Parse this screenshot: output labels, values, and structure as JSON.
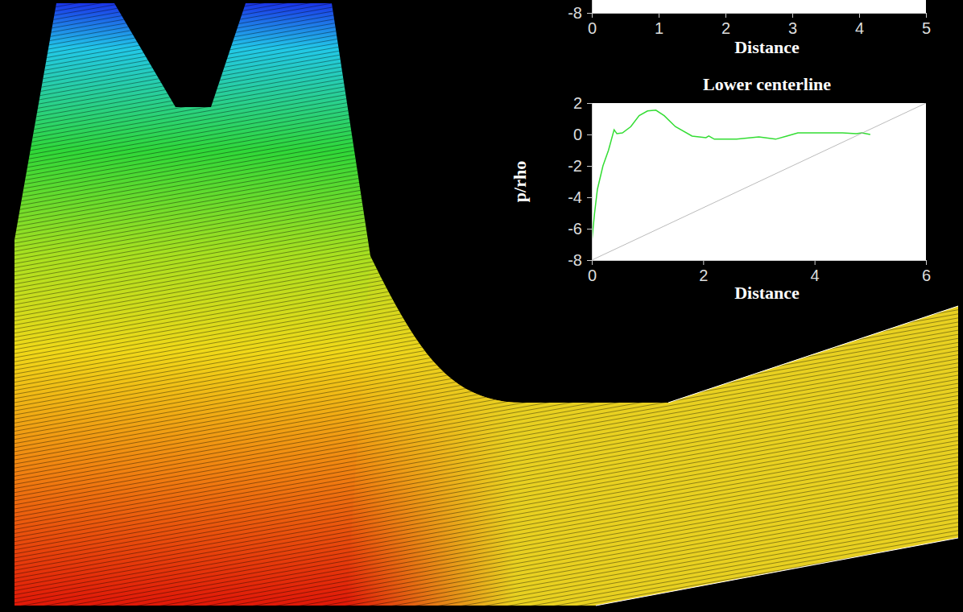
{
  "chart_data": [
    {
      "type": "line",
      "xlabel": "Distance",
      "xlim": [
        0,
        5
      ],
      "xticks": [
        0,
        1,
        2,
        3,
        4,
        5
      ],
      "ylim": [
        -8,
        2
      ],
      "yticks": [
        -8
      ]
    },
    {
      "type": "line",
      "title": "Lower centerline",
      "xlabel": "Distance",
      "ylabel": "p/rho",
      "xlim": [
        0,
        6
      ],
      "xticks": [
        0,
        2,
        4,
        6
      ],
      "ylim": [
        -8,
        2
      ],
      "yticks": [
        -8,
        -6,
        -4,
        -2,
        0,
        2
      ],
      "series": [
        {
          "color": "#33dd33",
          "line_style": "solid",
          "x": [
            0,
            0.05,
            0.1,
            0.2,
            0.3,
            0.4,
            0.45,
            0.55,
            0.7,
            0.85,
            1.0,
            1.15,
            1.3,
            1.5,
            1.8,
            2.05,
            2.1,
            2.2,
            2.6,
            3.0,
            3.3,
            3.5,
            3.7,
            4.0,
            4.5,
            4.75,
            4.85,
            5.0
          ],
          "values": [
            -6.8,
            -5,
            -3.5,
            -2,
            -1,
            0.3,
            0.05,
            0.1,
            0.5,
            1.2,
            1.5,
            1.55,
            1.2,
            0.5,
            -0.1,
            -0.2,
            -0.1,
            -0.3,
            -0.3,
            -0.15,
            -0.3,
            -0.1,
            0.1,
            0.1,
            0.1,
            0.05,
            0.1,
            0
          ]
        },
        {
          "color": "#aaaaaa",
          "line_style": "solid",
          "x": [
            0,
            6
          ],
          "values": [
            -8,
            2
          ]
        }
      ]
    }
  ]
}
